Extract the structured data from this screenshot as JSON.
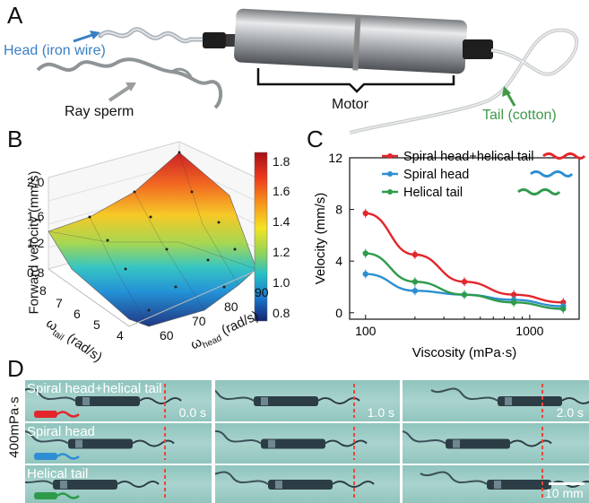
{
  "panel_a": {
    "letter": "A",
    "head_label": "Head (iron wire)",
    "sperm_label": "Ray sperm",
    "motor_label": "Motor",
    "tail_label": "Tail (cotton)",
    "colors": {
      "head": "#3a7fc4",
      "tail": "#3f9a4a"
    }
  },
  "panel_b": {
    "letter": "B",
    "zlabel": "Forward velocity (mm/s)",
    "ztick_labels": [
      "2.0",
      "1.6",
      "1.2",
      "0.8"
    ],
    "xlabel_main": "ω",
    "xlabel_sub": "tail",
    "xlabel_unit": "(rad/s)",
    "xtick_labels": [
      "8",
      "7",
      "6",
      "5",
      "4"
    ],
    "ylabel_main": "ω",
    "ylabel_sub": "head",
    "ylabel_unit": "(rad/s)",
    "ytick_labels": [
      "60",
      "70",
      "80",
      "90"
    ],
    "colorbar_ticks": [
      "1.8",
      "1.6",
      "1.4",
      "1.2",
      "1.0",
      "0.8"
    ]
  },
  "chart_data": {
    "type": "line",
    "panel_letter": "C",
    "xlabel": "Viscosity (mPa·s)",
    "ylabel": "Velocity (mm/s)",
    "xscale": "log",
    "xlim": [
      80,
      2000
    ],
    "ylim": [
      -0.5,
      12
    ],
    "x_tick_labels": [
      "100",
      "1000"
    ],
    "y_tick_labels": [
      "0",
      "4",
      "8",
      "12"
    ],
    "legend_position": "top",
    "series": [
      {
        "name": "Spiral head+helical tail",
        "color": "#e3262b",
        "x": [
          100,
          200,
          400,
          800,
          1600
        ],
        "y": [
          7.7,
          4.5,
          2.4,
          1.4,
          0.8
        ]
      },
      {
        "name": "Spiral head",
        "color": "#2d8fd1",
        "x": [
          100,
          200,
          400,
          800,
          1600
        ],
        "y": [
          3.0,
          1.7,
          1.4,
          1.0,
          0.5
        ]
      },
      {
        "name": "Helical tail",
        "color": "#2e9b4b",
        "x": [
          100,
          200,
          400,
          800,
          1600
        ],
        "y": [
          4.6,
          2.4,
          1.4,
          0.8,
          0.3
        ]
      }
    ]
  },
  "panel_d": {
    "letter": "D",
    "side_label": "400mPa·s",
    "rows": [
      {
        "label": "Spiral head+helical tail",
        "times": [
          "0.0 s",
          "1.0 s",
          "2.0 s"
        ]
      },
      {
        "label": "Spiral head",
        "times": [
          "",
          "",
          ""
        ]
      },
      {
        "label": "Helical tail",
        "times": [
          "",
          "",
          ""
        ]
      }
    ],
    "scale_label": "10 mm",
    "colors": {
      "marker": "#e8473a",
      "row1_swatch": "#e3262b",
      "row2_swatch": "#2d8fd1",
      "row3_swatch": "#2e9b4b"
    }
  }
}
